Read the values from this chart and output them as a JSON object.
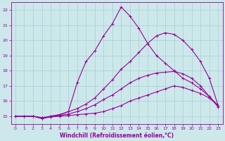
{
  "xlabel": "Windchill (Refroidissement éolien,°C)",
  "ylabel": "",
  "bg_color": "#cce8ea",
  "line_color": "#990099",
  "grid_color": "#a0c8cc",
  "xlim": [
    -0.5,
    23.5
  ],
  "ylim": [
    14.5,
    22.5
  ],
  "xticks": [
    0,
    1,
    2,
    3,
    4,
    5,
    6,
    7,
    8,
    9,
    10,
    11,
    12,
    13,
    14,
    15,
    16,
    17,
    18,
    19,
    20,
    21,
    22,
    23
  ],
  "yticks": [
    15,
    16,
    17,
    18,
    19,
    20,
    21,
    22
  ],
  "line1_x": [
    0,
    1,
    2,
    3,
    4,
    5,
    6,
    7,
    8,
    9,
    10,
    11,
    12,
    13,
    14,
    15,
    16,
    17,
    18,
    19,
    20,
    21,
    22,
    23
  ],
  "line1_y": [
    15.0,
    15.0,
    15.0,
    14.9,
    14.95,
    15.0,
    15.05,
    15.1,
    15.15,
    15.2,
    15.3,
    15.5,
    15.7,
    16.0,
    16.2,
    16.4,
    16.6,
    16.8,
    17.0,
    16.9,
    16.7,
    16.5,
    16.2,
    15.7
  ],
  "line2_x": [
    0,
    1,
    2,
    3,
    4,
    5,
    6,
    7,
    8,
    9,
    10,
    11,
    12,
    13,
    14,
    15,
    16,
    17,
    18,
    19,
    20,
    21,
    22,
    23
  ],
  "line2_y": [
    15.0,
    15.0,
    15.0,
    14.85,
    14.95,
    15.05,
    15.15,
    15.3,
    15.5,
    15.75,
    16.1,
    16.4,
    16.8,
    17.2,
    17.5,
    17.7,
    17.85,
    17.9,
    17.95,
    17.8,
    17.5,
    17.0,
    16.3,
    15.7
  ],
  "line3_x": [
    0,
    1,
    2,
    3,
    4,
    5,
    6,
    7,
    8,
    9,
    10,
    11,
    12,
    13,
    14,
    15,
    16,
    17,
    18,
    19,
    20,
    21,
    22,
    23
  ],
  "line3_y": [
    15.0,
    15.0,
    15.0,
    14.85,
    15.0,
    15.1,
    15.3,
    15.5,
    15.8,
    16.2,
    16.8,
    17.4,
    18.1,
    18.6,
    19.2,
    19.8,
    20.3,
    20.5,
    20.4,
    20.0,
    19.4,
    18.6,
    17.5,
    15.7
  ],
  "line4_x": [
    0,
    1,
    2,
    3,
    4,
    5,
    6,
    7,
    8,
    9,
    10,
    11,
    12,
    13,
    14,
    15,
    16,
    17,
    18,
    19,
    20,
    21,
    22,
    23
  ],
  "line4_y": [
    15.0,
    15.0,
    15.0,
    14.9,
    15.0,
    15.1,
    15.3,
    17.2,
    18.6,
    19.3,
    20.3,
    21.1,
    22.2,
    21.6,
    20.8,
    19.8,
    19.0,
    18.5,
    18.0,
    17.5,
    17.2,
    16.8,
    16.3,
    15.6
  ],
  "marker": "+",
  "markersize": 3,
  "linewidth": 0.8,
  "tick_fontsize": 4.5,
  "label_fontsize": 5.5
}
